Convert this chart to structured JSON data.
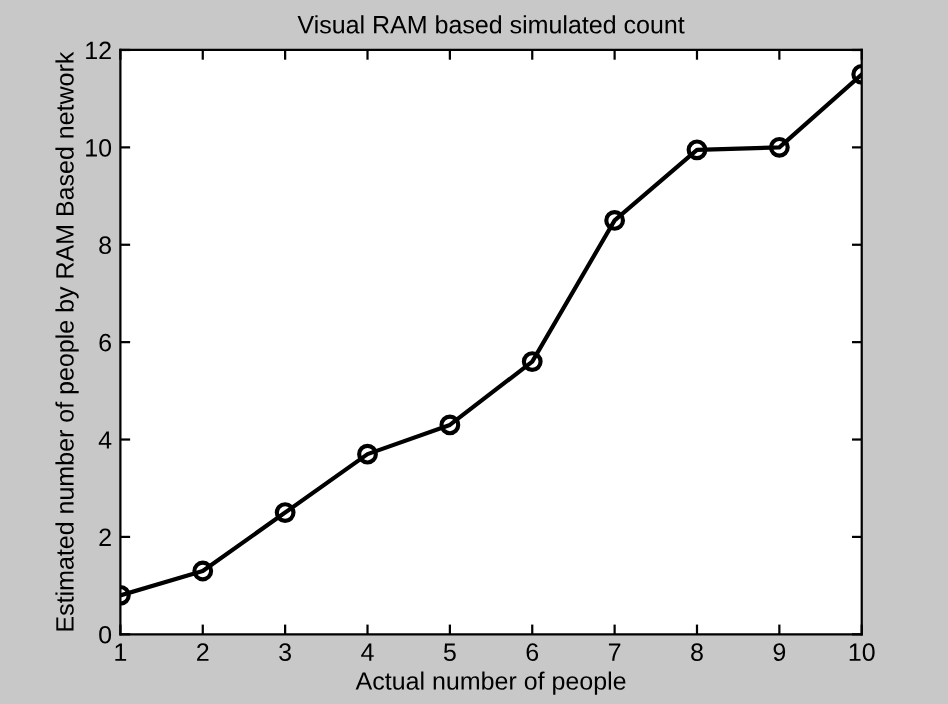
{
  "chart_data": {
    "type": "line",
    "title": "Visual RAM based simulated count",
    "xlabel": "Actual number of people",
    "ylabel": "Estimated number of people by RAM Based network",
    "x": [
      1,
      2,
      3,
      4,
      5,
      6,
      7,
      8,
      9,
      10
    ],
    "series": [
      {
        "color": "#000000",
        "values": [
          0.8,
          1.3,
          2.5,
          3.7,
          4.3,
          5.6,
          8.5,
          9.95,
          10.0,
          11.5
        ]
      }
    ],
    "xlim": [
      1,
      10
    ],
    "xticks": [
      1,
      2,
      3,
      4,
      5,
      6,
      7,
      8,
      9,
      10
    ],
    "ylim": [
      0,
      12
    ],
    "yticks": [
      0,
      2,
      4,
      6,
      8,
      10,
      12
    ],
    "marker": "circle",
    "line_style": "solid",
    "grid": false,
    "legend": false
  }
}
